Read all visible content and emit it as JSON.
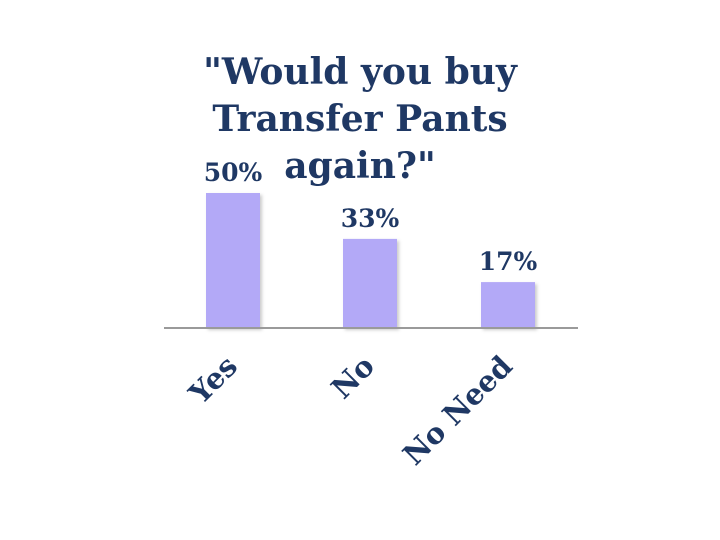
{
  "chart_data": {
    "type": "bar",
    "title_lines": [
      "\"Would you buy",
      "Transfer Pants",
      "again?\""
    ],
    "categories": [
      "Yes",
      "No",
      "No Need"
    ],
    "values": [
      50,
      33,
      17
    ],
    "data_labels": [
      "50%",
      "33%",
      "17%"
    ],
    "ylim": [
      0,
      50
    ],
    "grid": false,
    "legend": "none",
    "xlabel": "",
    "ylabel": ""
  },
  "colors": {
    "bar": "#b3a9f7",
    "bar_shadow": "#c9c9c9",
    "text": "#1f3864",
    "axis": "#9a9a9a"
  }
}
